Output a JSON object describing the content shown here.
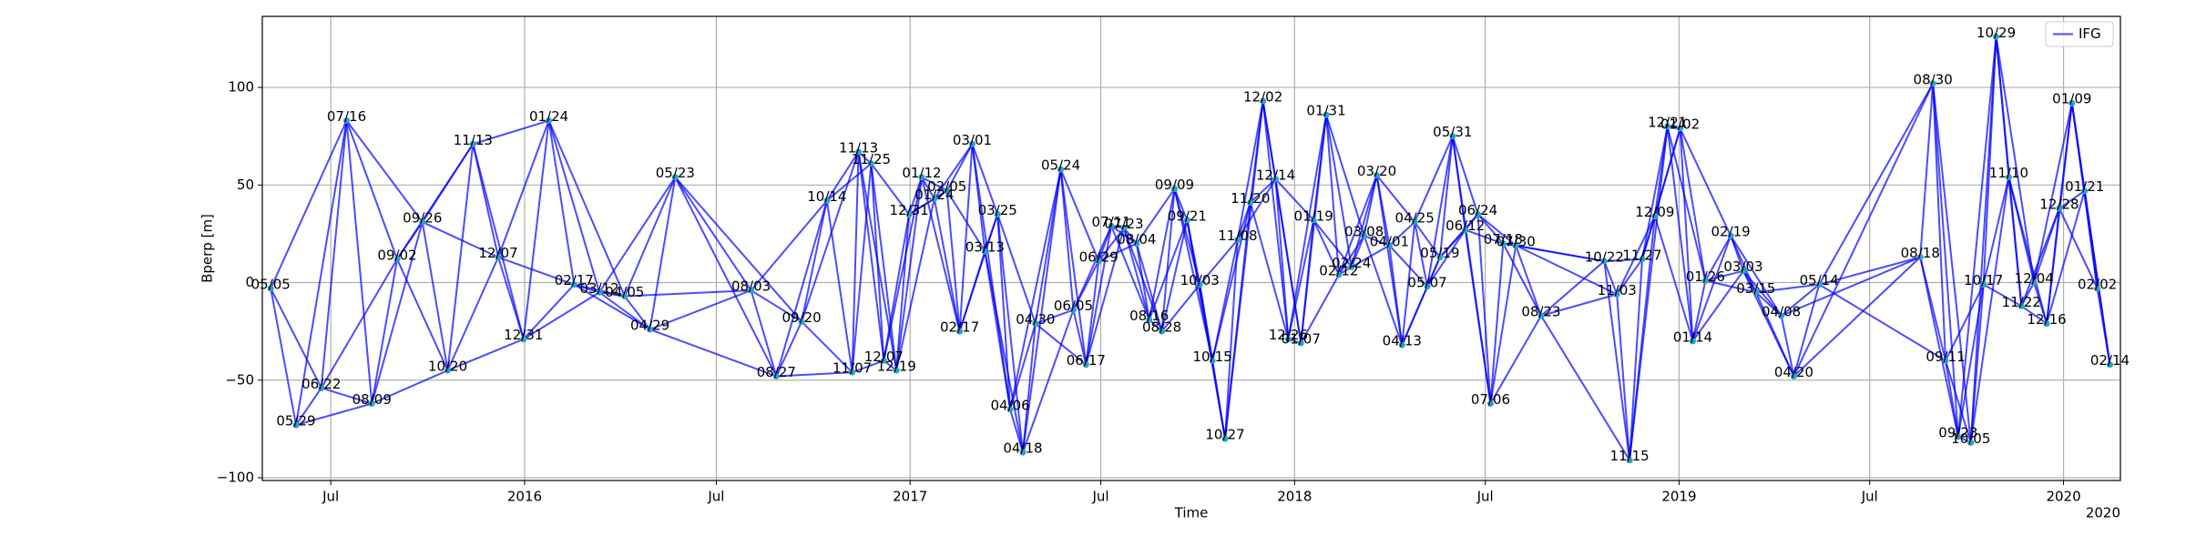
{
  "chart_data": {
    "type": "network",
    "x_label": "Time",
    "y_label": "Bperp [m]",
    "x_offset_label": "2020",
    "x": [
      "2015-05-05",
      "2015-05-29",
      "2015-06-22",
      "2015-07-16",
      "2015-08-09",
      "2015-09-02",
      "2015-09-26",
      "2015-10-20",
      "2015-11-13",
      "2015-12-07",
      "2015-12-31",
      "2016-01-24",
      "2016-02-17",
      "2016-03-12",
      "2016-04-05",
      "2016-04-29",
      "2016-05-23",
      "2016-08-03",
      "2016-08-27",
      "2016-09-20",
      "2016-10-14",
      "2016-11-07",
      "2016-11-13",
      "2016-11-25",
      "2016-12-07",
      "2016-12-19",
      "2016-12-31",
      "2017-01-12",
      "2017-01-24",
      "2017-02-05",
      "2017-02-17",
      "2017-03-01",
      "2017-03-13",
      "2017-03-25",
      "2017-04-06",
      "2017-04-18",
      "2017-04-30",
      "2017-05-24",
      "2017-06-05",
      "2017-06-17",
      "2017-06-29",
      "2017-07-11",
      "2017-07-23",
      "2017-08-04",
      "2017-08-16",
      "2017-08-28",
      "2017-09-09",
      "2017-09-21",
      "2017-10-03",
      "2017-10-15",
      "2017-10-27",
      "2017-11-08",
      "2017-11-20",
      "2017-12-02",
      "2017-12-14",
      "2017-12-26",
      "2018-01-07",
      "2018-01-19",
      "2018-01-31",
      "2018-02-12",
      "2018-02-24",
      "2018-03-08",
      "2018-03-20",
      "2018-04-01",
      "2018-04-13",
      "2018-04-25",
      "2018-05-07",
      "2018-05-19",
      "2018-05-31",
      "2018-06-12",
      "2018-06-24",
      "2018-07-06",
      "2018-07-18",
      "2018-07-30",
      "2018-08-23",
      "2018-10-22",
      "2018-11-03",
      "2018-11-15",
      "2018-11-27",
      "2018-12-09",
      "2018-12-21",
      "2019-01-02",
      "2019-01-14",
      "2019-01-26",
      "2019-02-19",
      "2019-03-03",
      "2019-03-15",
      "2019-04-08",
      "2019-04-20",
      "2019-05-14",
      "2019-08-18",
      "2019-08-30",
      "2019-09-11",
      "2019-09-23",
      "2019-10-05",
      "2019-10-17",
      "2019-10-29",
      "2019-11-10",
      "2019-11-22",
      "2019-12-04",
      "2019-12-16",
      "2019-12-28",
      "2020-01-09",
      "2020-01-21",
      "2020-02-02",
      "2020-02-14"
    ],
    "point_labels": [
      "05/05",
      "05/29",
      "06/22",
      "07/16",
      "08/09",
      "09/02",
      "09/26",
      "10/20",
      "11/13",
      "12/07",
      "12/31",
      "01/24",
      "02/17",
      "03/12",
      "04/05",
      "04/29",
      "05/23",
      "08/03",
      "08/27",
      "09/20",
      "10/14",
      "11/07",
      "11/13",
      "11/25",
      "12/07",
      "12/19",
      "12/31",
      "01/12",
      "01/24",
      "02/05",
      "02/17",
      "03/01",
      "03/13",
      "03/25",
      "04/06",
      "04/18",
      "04/30",
      "05/24",
      "06/05",
      "06/17",
      "06/29",
      "07/11",
      "07/23",
      "08/04",
      "08/16",
      "08/28",
      "09/09",
      "09/21",
      "10/03",
      "10/15",
      "10/27",
      "11/08",
      "11/20",
      "12/02",
      "12/14",
      "12/26",
      "01/07",
      "01/19",
      "01/31",
      "02/12",
      "02/24",
      "03/08",
      "03/20",
      "04/01",
      "04/13",
      "04/25",
      "05/07",
      "05/19",
      "05/31",
      "06/12",
      "06/24",
      "07/06",
      "07/18",
      "07/30",
      "08/23",
      "10/22",
      "11/03",
      "11/15",
      "11/27",
      "12/09",
      "12/21",
      "01/02",
      "01/14",
      "01/26",
      "02/19",
      "03/03",
      "03/15",
      "04/08",
      "04/20",
      "05/14",
      "08/18",
      "08/30",
      "09/11",
      "09/23",
      "10/05",
      "10/17",
      "10/29",
      "11/10",
      "11/22",
      "12/04",
      "12/16",
      "12/28",
      "01/09",
      "01/21",
      "02/02",
      "02/14"
    ],
    "series": [
      {
        "name": "IFG",
        "color": "#0000ff",
        "marker_color": "#2aa3c4",
        "values": [
          -3,
          -73,
          -54,
          83,
          -62,
          12,
          31,
          -45,
          71,
          13,
          -29,
          83,
          -1,
          -5,
          -7,
          -24,
          54,
          -4,
          -48,
          -20,
          42,
          -46,
          67,
          61,
          -40,
          -45,
          35,
          54,
          43,
          47,
          -25,
          71,
          16,
          35,
          -65,
          -87,
          -21,
          58,
          -14,
          -42,
          11,
          29,
          28,
          20,
          -19,
          -25,
          48,
          32,
          -1,
          -40,
          -80,
          22,
          41,
          93,
          53,
          -29,
          -31,
          32,
          86,
          4,
          8,
          24,
          55,
          19,
          -32,
          31,
          -2,
          13,
          75,
          27,
          35,
          -62,
          20,
          19,
          -17,
          11,
          -6,
          -91,
          12,
          34,
          80,
          79,
          -30,
          1,
          24,
          6,
          -5,
          -17,
          -48,
          -1,
          13,
          102,
          -40,
          -79,
          -82,
          -1,
          126,
          54,
          -12,
          0,
          -21,
          38,
          92,
          47,
          -3,
          -42
        ]
      }
    ],
    "pairs": [
      [
        0,
        1
      ],
      [
        0,
        2
      ],
      [
        0,
        3
      ],
      [
        1,
        2
      ],
      [
        1,
        3
      ],
      [
        1,
        4
      ],
      [
        2,
        3
      ],
      [
        2,
        4
      ],
      [
        2,
        5
      ],
      [
        3,
        4
      ],
      [
        3,
        5
      ],
      [
        3,
        6
      ],
      [
        4,
        5
      ],
      [
        4,
        6
      ],
      [
        4,
        7
      ],
      [
        5,
        6
      ],
      [
        5,
        7
      ],
      [
        5,
        8
      ],
      [
        6,
        7
      ],
      [
        6,
        8
      ],
      [
        6,
        9
      ],
      [
        7,
        8
      ],
      [
        7,
        9
      ],
      [
        7,
        10
      ],
      [
        8,
        9
      ],
      [
        8,
        10
      ],
      [
        8,
        11
      ],
      [
        9,
        10
      ],
      [
        9,
        11
      ],
      [
        9,
        12
      ],
      [
        10,
        11
      ],
      [
        10,
        12
      ],
      [
        10,
        13
      ],
      [
        11,
        12
      ],
      [
        11,
        13
      ],
      [
        11,
        14
      ],
      [
        12,
        13
      ],
      [
        12,
        14
      ],
      [
        12,
        15
      ],
      [
        13,
        14
      ],
      [
        13,
        15
      ],
      [
        13,
        16
      ],
      [
        14,
        15
      ],
      [
        14,
        16
      ],
      [
        14,
        17
      ],
      [
        15,
        16
      ],
      [
        15,
        17
      ],
      [
        15,
        18
      ],
      [
        16,
        17
      ],
      [
        16,
        18
      ],
      [
        16,
        19
      ],
      [
        17,
        18
      ],
      [
        17,
        19
      ],
      [
        17,
        20
      ],
      [
        18,
        19
      ],
      [
        18,
        20
      ],
      [
        18,
        21
      ],
      [
        19,
        20
      ],
      [
        19,
        21
      ],
      [
        19,
        22
      ],
      [
        20,
        21
      ],
      [
        20,
        22
      ],
      [
        20,
        23
      ],
      [
        21,
        22
      ],
      [
        21,
        23
      ],
      [
        21,
        24
      ],
      [
        22,
        23
      ],
      [
        22,
        24
      ],
      [
        22,
        25
      ],
      [
        23,
        24
      ],
      [
        23,
        25
      ],
      [
        23,
        26
      ],
      [
        24,
        25
      ],
      [
        24,
        26
      ],
      [
        24,
        27
      ],
      [
        25,
        26
      ],
      [
        25,
        27
      ],
      [
        25,
        28
      ],
      [
        26,
        27
      ],
      [
        26,
        28
      ],
      [
        26,
        29
      ],
      [
        27,
        28
      ],
      [
        27,
        29
      ],
      [
        27,
        30
      ],
      [
        28,
        29
      ],
      [
        28,
        30
      ],
      [
        28,
        31
      ],
      [
        29,
        30
      ],
      [
        29,
        31
      ],
      [
        29,
        32
      ],
      [
        30,
        31
      ],
      [
        30,
        32
      ],
      [
        30,
        33
      ],
      [
        31,
        32
      ],
      [
        31,
        33
      ],
      [
        31,
        34
      ],
      [
        32,
        33
      ],
      [
        32,
        34
      ],
      [
        32,
        35
      ],
      [
        33,
        34
      ],
      [
        33,
        35
      ],
      [
        33,
        36
      ],
      [
        34,
        35
      ],
      [
        34,
        36
      ],
      [
        34,
        37
      ],
      [
        35,
        36
      ],
      [
        35,
        37
      ],
      [
        35,
        38
      ],
      [
        36,
        37
      ],
      [
        36,
        38
      ],
      [
        36,
        39
      ],
      [
        37,
        38
      ],
      [
        37,
        39
      ],
      [
        37,
        40
      ],
      [
        38,
        39
      ],
      [
        38,
        40
      ],
      [
        38,
        41
      ],
      [
        39,
        40
      ],
      [
        39,
        41
      ],
      [
        39,
        42
      ],
      [
        40,
        41
      ],
      [
        40,
        42
      ],
      [
        40,
        43
      ],
      [
        41,
        42
      ],
      [
        41,
        43
      ],
      [
        41,
        44
      ],
      [
        42,
        43
      ],
      [
        42,
        44
      ],
      [
        42,
        45
      ],
      [
        43,
        44
      ],
      [
        43,
        45
      ],
      [
        43,
        46
      ],
      [
        44,
        45
      ],
      [
        44,
        46
      ],
      [
        44,
        47
      ],
      [
        45,
        46
      ],
      [
        45,
        47
      ],
      [
        45,
        48
      ],
      [
        46,
        47
      ],
      [
        46,
        48
      ],
      [
        46,
        49
      ],
      [
        47,
        48
      ],
      [
        47,
        49
      ],
      [
        47,
        50
      ],
      [
        48,
        49
      ],
      [
        48,
        50
      ],
      [
        48,
        51
      ],
      [
        49,
        50
      ],
      [
        49,
        51
      ],
      [
        49,
        52
      ],
      [
        50,
        51
      ],
      [
        50,
        52
      ],
      [
        50,
        53
      ],
      [
        51,
        52
      ],
      [
        51,
        53
      ],
      [
        51,
        54
      ],
      [
        52,
        53
      ],
      [
        52,
        54
      ],
      [
        52,
        55
      ],
      [
        53,
        54
      ],
      [
        53,
        55
      ],
      [
        53,
        56
      ],
      [
        54,
        55
      ],
      [
        54,
        56
      ],
      [
        54,
        57
      ],
      [
        55,
        56
      ],
      [
        55,
        57
      ],
      [
        55,
        58
      ],
      [
        56,
        57
      ],
      [
        56,
        58
      ],
      [
        56,
        59
      ],
      [
        57,
        58
      ],
      [
        57,
        59
      ],
      [
        57,
        60
      ],
      [
        58,
        59
      ],
      [
        58,
        60
      ],
      [
        58,
        61
      ],
      [
        59,
        60
      ],
      [
        59,
        61
      ],
      [
        59,
        62
      ],
      [
        60,
        61
      ],
      [
        60,
        62
      ],
      [
        60,
        63
      ],
      [
        61,
        62
      ],
      [
        61,
        63
      ],
      [
        61,
        64
      ],
      [
        62,
        63
      ],
      [
        62,
        64
      ],
      [
        62,
        65
      ],
      [
        63,
        64
      ],
      [
        63,
        65
      ],
      [
        63,
        66
      ],
      [
        64,
        65
      ],
      [
        64,
        66
      ],
      [
        64,
        67
      ],
      [
        65,
        66
      ],
      [
        65,
        67
      ],
      [
        65,
        68
      ],
      [
        66,
        67
      ],
      [
        66,
        68
      ],
      [
        66,
        69
      ],
      [
        67,
        68
      ],
      [
        67,
        69
      ],
      [
        67,
        70
      ],
      [
        68,
        69
      ],
      [
        68,
        70
      ],
      [
        68,
        71
      ],
      [
        69,
        70
      ],
      [
        69,
        71
      ],
      [
        69,
        72
      ],
      [
        70,
        71
      ],
      [
        70,
        72
      ],
      [
        70,
        73
      ],
      [
        71,
        72
      ],
      [
        71,
        73
      ],
      [
        71,
        74
      ],
      [
        72,
        73
      ],
      [
        72,
        74
      ],
      [
        72,
        75
      ],
      [
        73,
        74
      ],
      [
        73,
        75
      ],
      [
        73,
        76
      ],
      [
        74,
        75
      ],
      [
        74,
        76
      ],
      [
        74,
        77
      ],
      [
        75,
        76
      ],
      [
        75,
        77
      ],
      [
        75,
        78
      ],
      [
        76,
        77
      ],
      [
        76,
        78
      ],
      [
        76,
        79
      ],
      [
        77,
        78
      ],
      [
        77,
        79
      ],
      [
        77,
        80
      ],
      [
        78,
        79
      ],
      [
        78,
        80
      ],
      [
        78,
        81
      ],
      [
        79,
        80
      ],
      [
        79,
        81
      ],
      [
        79,
        82
      ],
      [
        80,
        81
      ],
      [
        80,
        82
      ],
      [
        80,
        83
      ],
      [
        81,
        82
      ],
      [
        81,
        83
      ],
      [
        81,
        84
      ],
      [
        82,
        83
      ],
      [
        82,
        84
      ],
      [
        82,
        85
      ],
      [
        83,
        84
      ],
      [
        83,
        85
      ],
      [
        83,
        86
      ],
      [
        84,
        85
      ],
      [
        84,
        86
      ],
      [
        84,
        87
      ],
      [
        85,
        86
      ],
      [
        85,
        87
      ],
      [
        85,
        88
      ],
      [
        86,
        87
      ],
      [
        86,
        88
      ],
      [
        86,
        89
      ],
      [
        87,
        88
      ],
      [
        87,
        89
      ],
      [
        87,
        90
      ],
      [
        88,
        89
      ],
      [
        88,
        90
      ],
      [
        88,
        91
      ],
      [
        89,
        90
      ],
      [
        89,
        91
      ],
      [
        89,
        92
      ],
      [
        90,
        91
      ],
      [
        90,
        92
      ],
      [
        90,
        93
      ],
      [
        91,
        92
      ],
      [
        91,
        93
      ],
      [
        91,
        94
      ],
      [
        92,
        93
      ],
      [
        92,
        94
      ],
      [
        92,
        95
      ],
      [
        93,
        94
      ],
      [
        93,
        95
      ],
      [
        93,
        96
      ],
      [
        94,
        95
      ],
      [
        94,
        96
      ],
      [
        94,
        97
      ],
      [
        95,
        96
      ],
      [
        95,
        97
      ],
      [
        95,
        98
      ],
      [
        96,
        97
      ],
      [
        96,
        98
      ],
      [
        96,
        99
      ],
      [
        97,
        98
      ],
      [
        97,
        99
      ],
      [
        97,
        100
      ],
      [
        98,
        99
      ],
      [
        98,
        100
      ],
      [
        98,
        101
      ],
      [
        99,
        100
      ],
      [
        99,
        101
      ],
      [
        99,
        102
      ],
      [
        100,
        101
      ],
      [
        100,
        102
      ],
      [
        100,
        103
      ],
      [
        101,
        102
      ],
      [
        101,
        103
      ],
      [
        101,
        104
      ],
      [
        102,
        103
      ],
      [
        102,
        104
      ],
      [
        102,
        105
      ],
      [
        103,
        104
      ],
      [
        103,
        105
      ],
      [
        104,
        105
      ]
    ],
    "xlim": [
      "2015-04-27",
      "2020-02-24"
    ],
    "xticks": [
      {
        "value": "2015-07-01",
        "label": "Jul"
      },
      {
        "value": "2016-01-01",
        "label": "2016"
      },
      {
        "value": "2016-07-01",
        "label": "Jul"
      },
      {
        "value": "2017-01-01",
        "label": "2017"
      },
      {
        "value": "2017-07-01",
        "label": "Jul"
      },
      {
        "value": "2018-01-01",
        "label": "2018"
      },
      {
        "value": "2018-07-01",
        "label": "Jul"
      },
      {
        "value": "2019-01-01",
        "label": "2019"
      },
      {
        "value": "2019-07-01",
        "label": "Jul"
      },
      {
        "value": "2020-01-01",
        "label": "2020"
      }
    ],
    "ylim": [
      -101.4,
      136.4
    ],
    "yticks": [
      {
        "value": -100,
        "label": "−100"
      },
      {
        "value": -50,
        "label": "−50"
      },
      0,
      50,
      100
    ],
    "grid": true,
    "legend": "upper right"
  }
}
